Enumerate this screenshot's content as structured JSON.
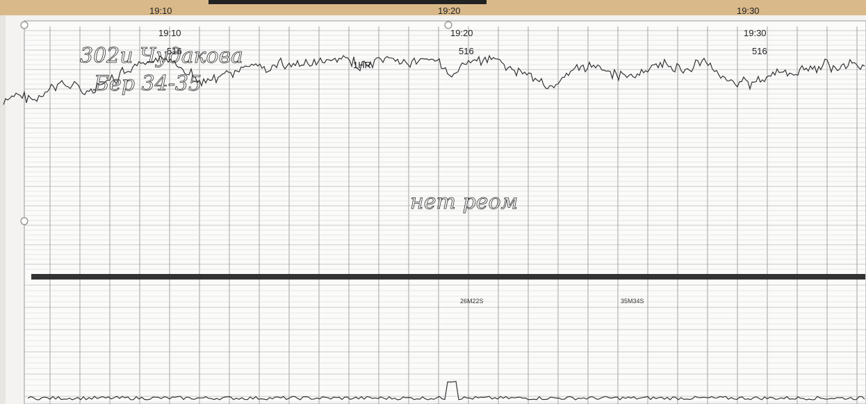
{
  "header_strip": {
    "times": [
      "19:10",
      "19:20",
      "19:30"
    ]
  },
  "strip": {
    "time_marks": [
      {
        "time": "19:10",
        "code": "516"
      },
      {
        "time": "19:20",
        "code": "516"
      },
      {
        "time": "19:30",
        "code": "516"
      }
    ],
    "event_label": "1HR",
    "elapsed_marks": [
      "26M22S",
      "35M34S"
    ],
    "handwriting": [
      "302и Чудакова",
      "Бер 34-35",
      "нет реом"
    ]
  }
}
